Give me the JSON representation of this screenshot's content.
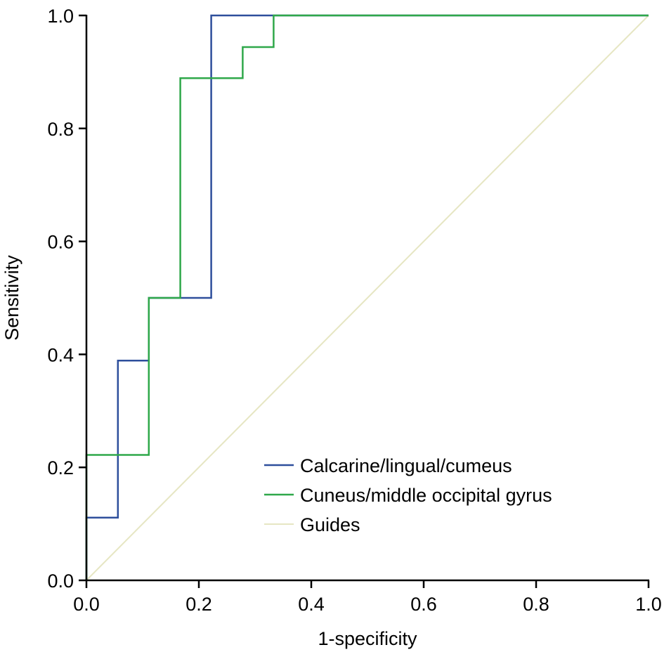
{
  "chart_data": {
    "type": "line",
    "xlabel": "1-specificity",
    "ylabel": "Sensitivity",
    "xlim": [
      0,
      1
    ],
    "ylim": [
      0,
      1
    ],
    "xticks": [
      "0.0",
      "0.2",
      "0.4",
      "0.6",
      "0.8",
      "1.0"
    ],
    "yticks": [
      "0.0",
      "0.2",
      "0.4",
      "0.6",
      "0.8",
      "1.0"
    ],
    "grid": false,
    "legend_position": "bottom-right",
    "step": true,
    "series": [
      {
        "name": "Calcarine/lingual/cumeus",
        "color": "#2e4f9c",
        "x": [
          0,
          0,
          0.056,
          0.056,
          0.111,
          0.111,
          0.222,
          0.222,
          1.0
        ],
        "y": [
          0,
          0.111,
          0.111,
          0.389,
          0.389,
          0.5,
          0.5,
          1.0,
          1.0
        ]
      },
      {
        "name": "Cuneus/middle occipital gyrus",
        "color": "#2fa84a",
        "x": [
          0,
          0,
          0.111,
          0.111,
          0.167,
          0.167,
          0.278,
          0.278,
          0.333,
          0.333,
          1.0
        ],
        "y": [
          0,
          0.222,
          0.222,
          0.5,
          0.5,
          0.889,
          0.889,
          0.944,
          0.944,
          1.0,
          1.0
        ]
      },
      {
        "name": "Guides",
        "color": "#e6e6c3",
        "x": [
          0,
          1
        ],
        "y": [
          0,
          1
        ]
      }
    ]
  }
}
